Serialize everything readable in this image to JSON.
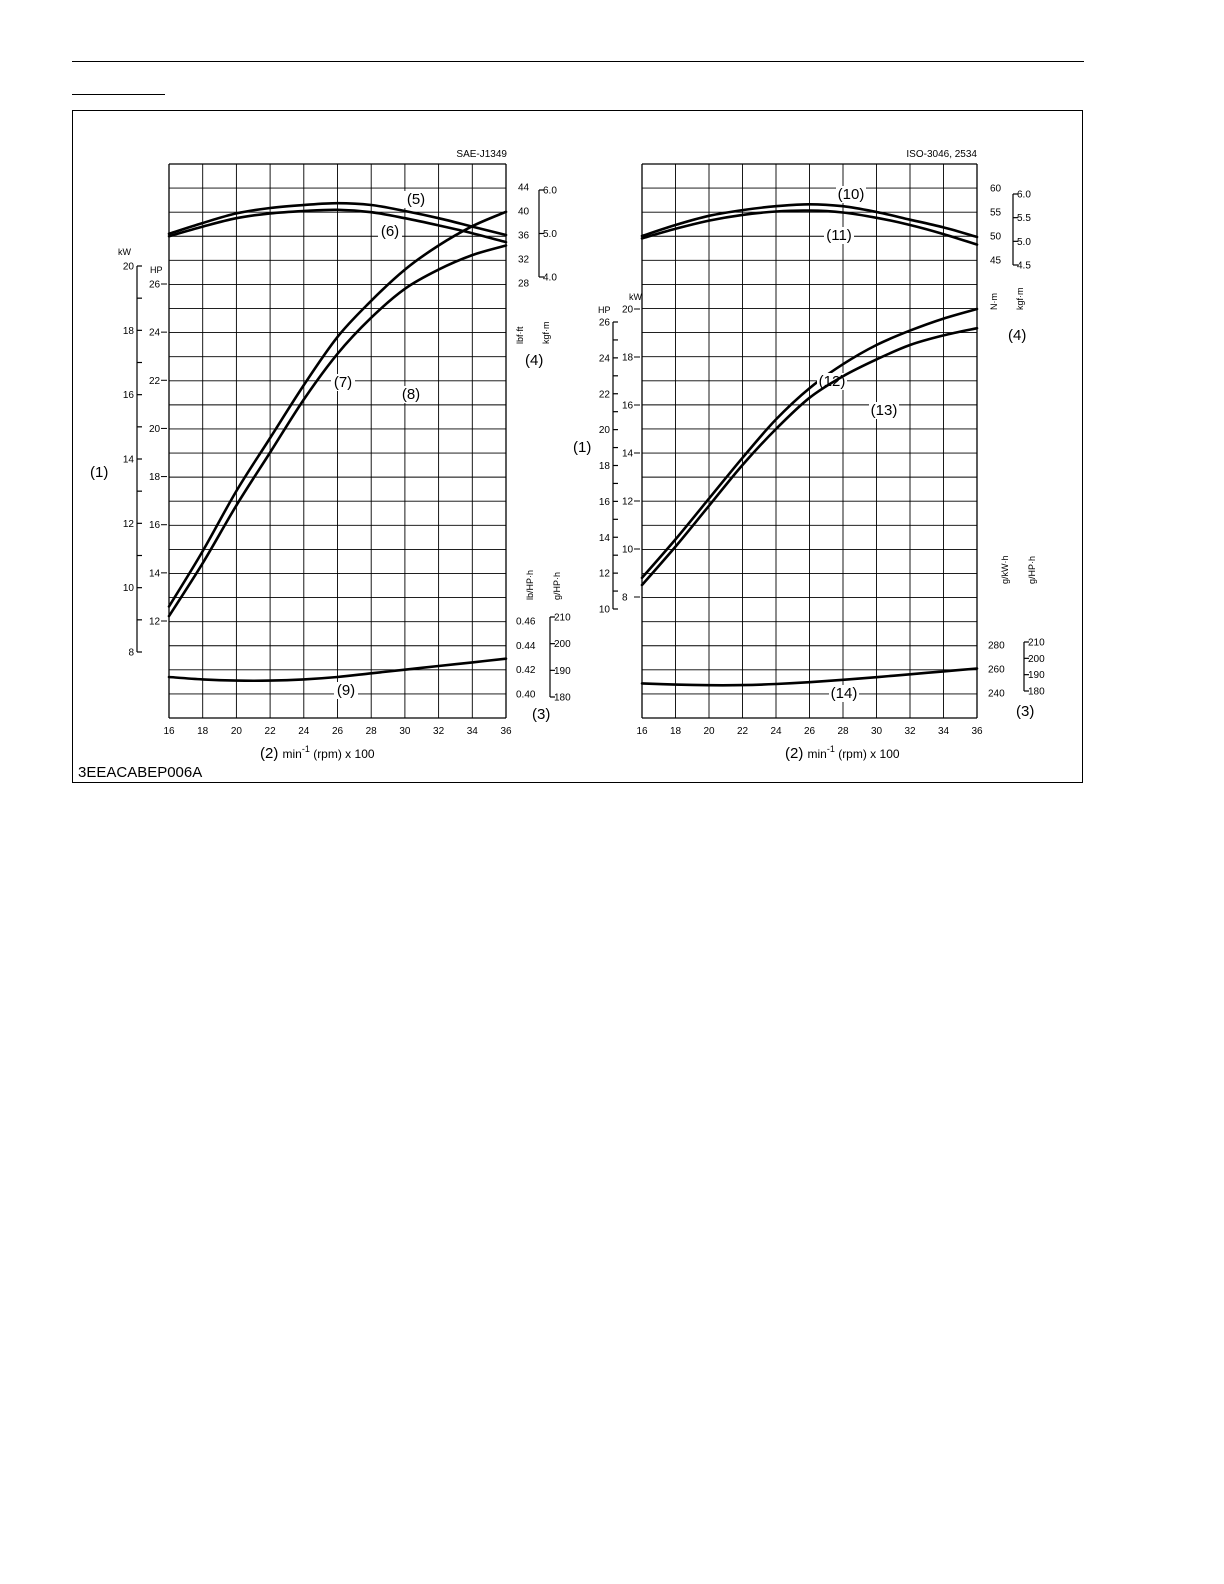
{
  "figure_code": "3EEACABEP006A",
  "chart_data": [
    {
      "type": "line",
      "standard": "SAE-J1349",
      "x_values": [
        16,
        18,
        20,
        22,
        24,
        26,
        28,
        30,
        32,
        34,
        36
      ],
      "xlim": [
        16,
        36
      ],
      "x_ticks": [
        "16",
        "18",
        "20",
        "22",
        "24",
        "26",
        "28",
        "30",
        "32",
        "34",
        "36"
      ],
      "x_axis_number": "(2)",
      "x_axis_unit": "min",
      "x_axis_exp": "-1",
      "x_axis_suffix": " (rpm) x 100",
      "power_axis_number": "(1)",
      "power_kw_unit": "kW",
      "power_kw_ticks": [
        "20",
        "18",
        "16",
        "14",
        "12",
        "10",
        "8"
      ],
      "power_hp_unit": "HP",
      "power_hp_ticks": [
        "26",
        "24",
        "22",
        "20",
        "18",
        "16",
        "14",
        "12"
      ],
      "torque_axis_number": "(4)",
      "torque_unit_1": "lbf·ft",
      "torque_ticks_1": [
        "44",
        "40",
        "36",
        "32",
        "28"
      ],
      "torque_unit_2": "kgf·m",
      "torque_ticks_2": [
        "6.0",
        "5.0",
        "4.0"
      ],
      "fuel_axis_number": "(3)",
      "fuel_unit_1": "lb/HP·h",
      "fuel_ticks_1": [
        "0.46",
        "0.44",
        "0.42",
        "0.40"
      ],
      "fuel_unit_2": "g/HP·h",
      "fuel_ticks_2": [
        "210",
        "200",
        "190",
        "180"
      ],
      "series": [
        {
          "name": "(5)",
          "quantity": "torque",
          "unit": "lbf·ft",
          "values": [
            36.2,
            38.0,
            39.6,
            40.5,
            41.0,
            41.3,
            41.0,
            40.0,
            38.8,
            37.4,
            36.0
          ]
        },
        {
          "name": "(6)",
          "quantity": "torque",
          "unit": "lbf·ft",
          "values": [
            35.8,
            37.4,
            38.8,
            39.6,
            40.0,
            40.2,
            39.8,
            38.8,
            37.6,
            36.3,
            34.8
          ]
        },
        {
          "name": "(7)",
          "quantity": "power",
          "unit": "HP",
          "values": [
            12.6,
            14.9,
            17.4,
            19.6,
            21.8,
            23.8,
            25.3,
            26.6,
            27.6,
            28.4,
            29.0
          ]
        },
        {
          "name": "(8)",
          "quantity": "power",
          "unit": "HP",
          "values": [
            12.2,
            14.4,
            16.8,
            19.0,
            21.2,
            23.1,
            24.6,
            25.8,
            26.6,
            27.2,
            27.6
          ]
        },
        {
          "name": "(9)",
          "quantity": "fuel consumption",
          "unit": "lb/HP·h",
          "values": [
            0.414,
            0.412,
            0.411,
            0.411,
            0.412,
            0.414,
            0.417,
            0.42,
            0.423,
            0.426,
            0.429
          ]
        }
      ]
    },
    {
      "type": "line",
      "standard": "ISO-3046, 2534",
      "x_values": [
        16,
        18,
        20,
        22,
        24,
        26,
        28,
        30,
        32,
        34,
        36
      ],
      "xlim": [
        16,
        36
      ],
      "x_ticks": [
        "16",
        "18",
        "20",
        "22",
        "24",
        "26",
        "28",
        "30",
        "32",
        "34",
        "36"
      ],
      "x_axis_number": "(2)",
      "x_axis_unit": "min",
      "x_axis_exp": "-1",
      "x_axis_suffix": " (rpm) x 100",
      "power_axis_number": "(1)",
      "power_kw_unit": "kW",
      "power_kw_ticks": [
        "20",
        "18",
        "16",
        "14",
        "12",
        "10",
        "8"
      ],
      "power_hp_unit": "HP",
      "power_hp_ticks": [
        "26",
        "24",
        "22",
        "20",
        "18",
        "16",
        "14",
        "12",
        "10"
      ],
      "torque_axis_number": "(4)",
      "torque_unit_1": "N·m",
      "torque_ticks_1": [
        "60",
        "55",
        "50",
        "45"
      ],
      "torque_unit_2": "kgf·m",
      "torque_ticks_2": [
        "6.0",
        "5.5",
        "5.0",
        "4.5"
      ],
      "fuel_axis_number": "(3)",
      "fuel_unit_1": "g/kW·h",
      "fuel_ticks_1": [
        "280",
        "260",
        "240"
      ],
      "fuel_unit_2": "g/HP·h",
      "fuel_ticks_2": [
        "210",
        "200",
        "190",
        "180"
      ],
      "series": [
        {
          "name": "(10)",
          "quantity": "torque",
          "unit": "N·m",
          "values": [
            50.0,
            52.3,
            54.2,
            55.4,
            56.2,
            56.6,
            56.2,
            55.0,
            53.4,
            51.8,
            49.8
          ]
        },
        {
          "name": "(11)",
          "quantity": "torque",
          "unit": "N·m",
          "values": [
            49.5,
            51.5,
            53.2,
            54.4,
            55.1,
            55.3,
            54.9,
            53.8,
            52.3,
            50.4,
            48.2
          ]
        },
        {
          "name": "(12)",
          "quantity": "power",
          "unit": "kW",
          "values": [
            8.8,
            10.4,
            12.1,
            13.8,
            15.4,
            16.7,
            17.7,
            18.5,
            19.1,
            19.6,
            20.0
          ]
        },
        {
          "name": "(13)",
          "quantity": "power",
          "unit": "kW",
          "values": [
            8.5,
            10.1,
            11.8,
            13.5,
            15.0,
            16.3,
            17.2,
            17.9,
            18.5,
            18.9,
            19.2
          ]
        },
        {
          "name": "(14)",
          "quantity": "fuel consumption",
          "unit": "g/kW·h",
          "values": [
            248.0,
            247.0,
            246.5,
            246.6,
            247.5,
            249.0,
            251.0,
            253.2,
            255.6,
            258.0,
            260.4
          ]
        }
      ]
    }
  ]
}
